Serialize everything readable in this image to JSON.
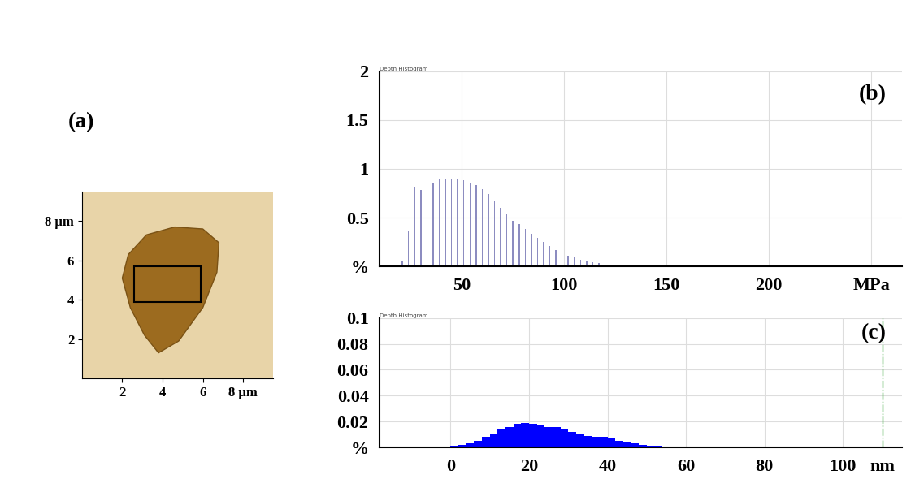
{
  "chart_data": [
    {
      "type": "image",
      "title": "(a)",
      "xlim": [
        0,
        9.5
      ],
      "xticks": [
        2,
        4,
        6,
        {
          "value": 8,
          "label": "8 µm"
        }
      ],
      "ylim": [
        0,
        9.5
      ],
      "yticks": [
        2,
        4,
        6,
        {
          "value": 8,
          "label": "8 µm"
        }
      ],
      "grid": false
    },
    {
      "type": "bar",
      "title": "(b)",
      "subtitle": "Depth Histogram",
      "x": [
        21,
        24,
        27,
        30,
        33,
        36,
        39,
        42,
        45,
        48,
        51,
        54,
        57,
        60,
        63,
        66,
        69,
        72,
        75,
        78,
        81,
        84,
        87,
        90,
        93,
        96,
        99,
        102,
        105,
        108,
        111,
        114,
        117,
        120,
        123,
        126,
        129,
        132,
        135,
        138,
        141,
        144
      ],
      "values": [
        0.05,
        0.37,
        0.82,
        0.78,
        0.83,
        0.85,
        0.89,
        0.9,
        0.9,
        0.9,
        0.88,
        0.86,
        0.83,
        0.79,
        0.74,
        0.67,
        0.6,
        0.53,
        0.47,
        0.43,
        0.38,
        0.33,
        0.29,
        0.25,
        0.21,
        0.17,
        0.14,
        0.11,
        0.09,
        0.07,
        0.05,
        0.04,
        0.03,
        0.02,
        0.015,
        0.01,
        0.008,
        0.005,
        0.004,
        0.003,
        0.002,
        0.001
      ],
      "color": "#8c8cc0",
      "xlim": [
        10,
        265
      ],
      "xticks": [
        50,
        100,
        150,
        200,
        {
          "value": 250,
          "label": "MPa"
        }
      ],
      "ylim": [
        0,
        2
      ],
      "yticks": [
        {
          "value": 0,
          "label": "%"
        },
        0.5,
        1,
        1.5,
        2
      ],
      "grid": true
    },
    {
      "type": "histogram",
      "title": "(c)",
      "subtitle": "Depth Histogram",
      "bins": [
        -4,
        -2,
        0,
        2,
        4,
        6,
        8,
        10,
        12,
        14,
        16,
        18,
        20,
        22,
        24,
        26,
        28,
        30,
        32,
        34,
        36,
        38,
        40,
        42,
        44,
        46,
        48,
        50,
        52,
        54,
        56,
        58,
        60,
        62,
        64,
        66,
        68,
        70,
        72,
        74,
        76,
        78,
        80,
        82
      ],
      "counts": [
        0.0003,
        0.0006,
        0.001,
        0.002,
        0.003,
        0.005,
        0.008,
        0.011,
        0.014,
        0.016,
        0.018,
        0.019,
        0.018,
        0.017,
        0.016,
        0.016,
        0.014,
        0.012,
        0.01,
        0.009,
        0.008,
        0.008,
        0.007,
        0.005,
        0.004,
        0.003,
        0.002,
        0.0015,
        0.001,
        0.0008,
        0.0006,
        0.0006,
        0.0005,
        0.0005,
        0.0004,
        0.0004,
        0.0004,
        0.0003,
        0.0003,
        0.0003,
        0.0003,
        0.0002,
        0.0002
      ],
      "color": "#0000ff",
      "reference_line": {
        "x": 110,
        "color": "#33aa33",
        "line_style": "dashdot"
      },
      "xlim": [
        -18,
        115
      ],
      "xticks": [
        0,
        20,
        40,
        60,
        80,
        100,
        {
          "value": 110,
          "label": "nm"
        }
      ],
      "ylim": [
        0,
        0.1
      ],
      "yticks": [
        {
          "value": 0,
          "label": "%"
        },
        0.02,
        0.04,
        0.06,
        0.08,
        0.1
      ],
      "grid": true
    }
  ]
}
